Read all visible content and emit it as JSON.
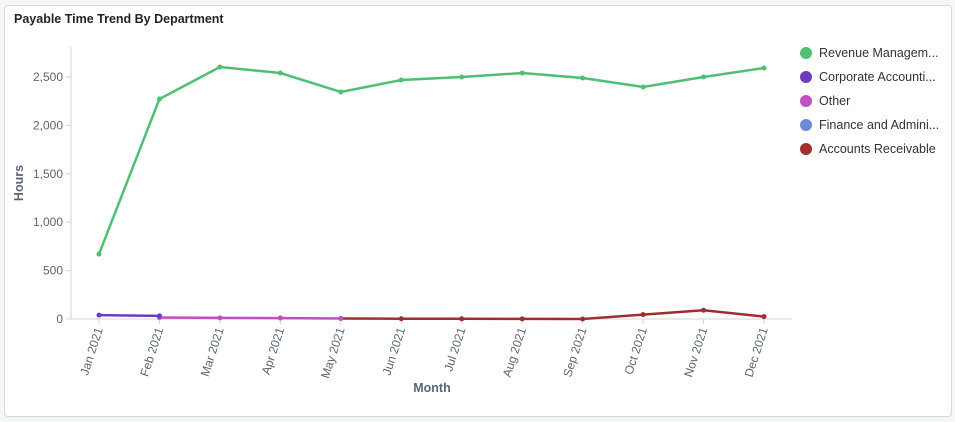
{
  "chart_data": {
    "type": "line",
    "title": "Payable Time Trend By Department",
    "xlabel": "Month",
    "ylabel": "Hours",
    "ylim": [
      0,
      2750
    ],
    "yticks": [
      0,
      500,
      1000,
      1500,
      2000,
      2500
    ],
    "ytick_labels": [
      "0",
      "500",
      "1,000",
      "1,500",
      "2,000",
      "2,500"
    ],
    "grid": false,
    "legend_position": "right",
    "categories": [
      "Jan 2021",
      "Feb 2021",
      "Mar 2021",
      "Apr 2021",
      "May 2021",
      "Jun 2021",
      "Jul 2021",
      "Aug 2021",
      "Sep 2021",
      "Oct 2021",
      "Nov 2021",
      "Dec 2021"
    ],
    "series": [
      {
        "name": "Revenue Managem...",
        "color": "#4fbf73",
        "values": [
          671,
          2273,
          2603,
          2541,
          2345,
          2469,
          2500,
          2541,
          2490,
          2397,
          2500,
          2593
        ]
      },
      {
        "name": "Corporate Accounti...",
        "color": "#6a3dbf",
        "values": [
          40,
          32,
          null,
          null,
          null,
          null,
          null,
          null,
          null,
          null,
          null,
          null
        ]
      },
      {
        "name": "Other",
        "color": "#c050c0",
        "values": [
          null,
          15,
          12,
          9,
          5,
          null,
          null,
          null,
          null,
          null,
          null,
          null
        ]
      },
      {
        "name": "Finance and Admini...",
        "color": "#6f8ad8",
        "values": [
          null,
          null,
          null,
          12,
          null,
          null,
          null,
          null,
          null,
          null,
          null,
          null
        ]
      },
      {
        "name": "Accounts Receivable",
        "color": "#9e2f2f",
        "values": [
          null,
          null,
          null,
          null,
          5,
          3,
          2,
          1,
          0,
          45,
          90,
          25
        ]
      }
    ]
  }
}
